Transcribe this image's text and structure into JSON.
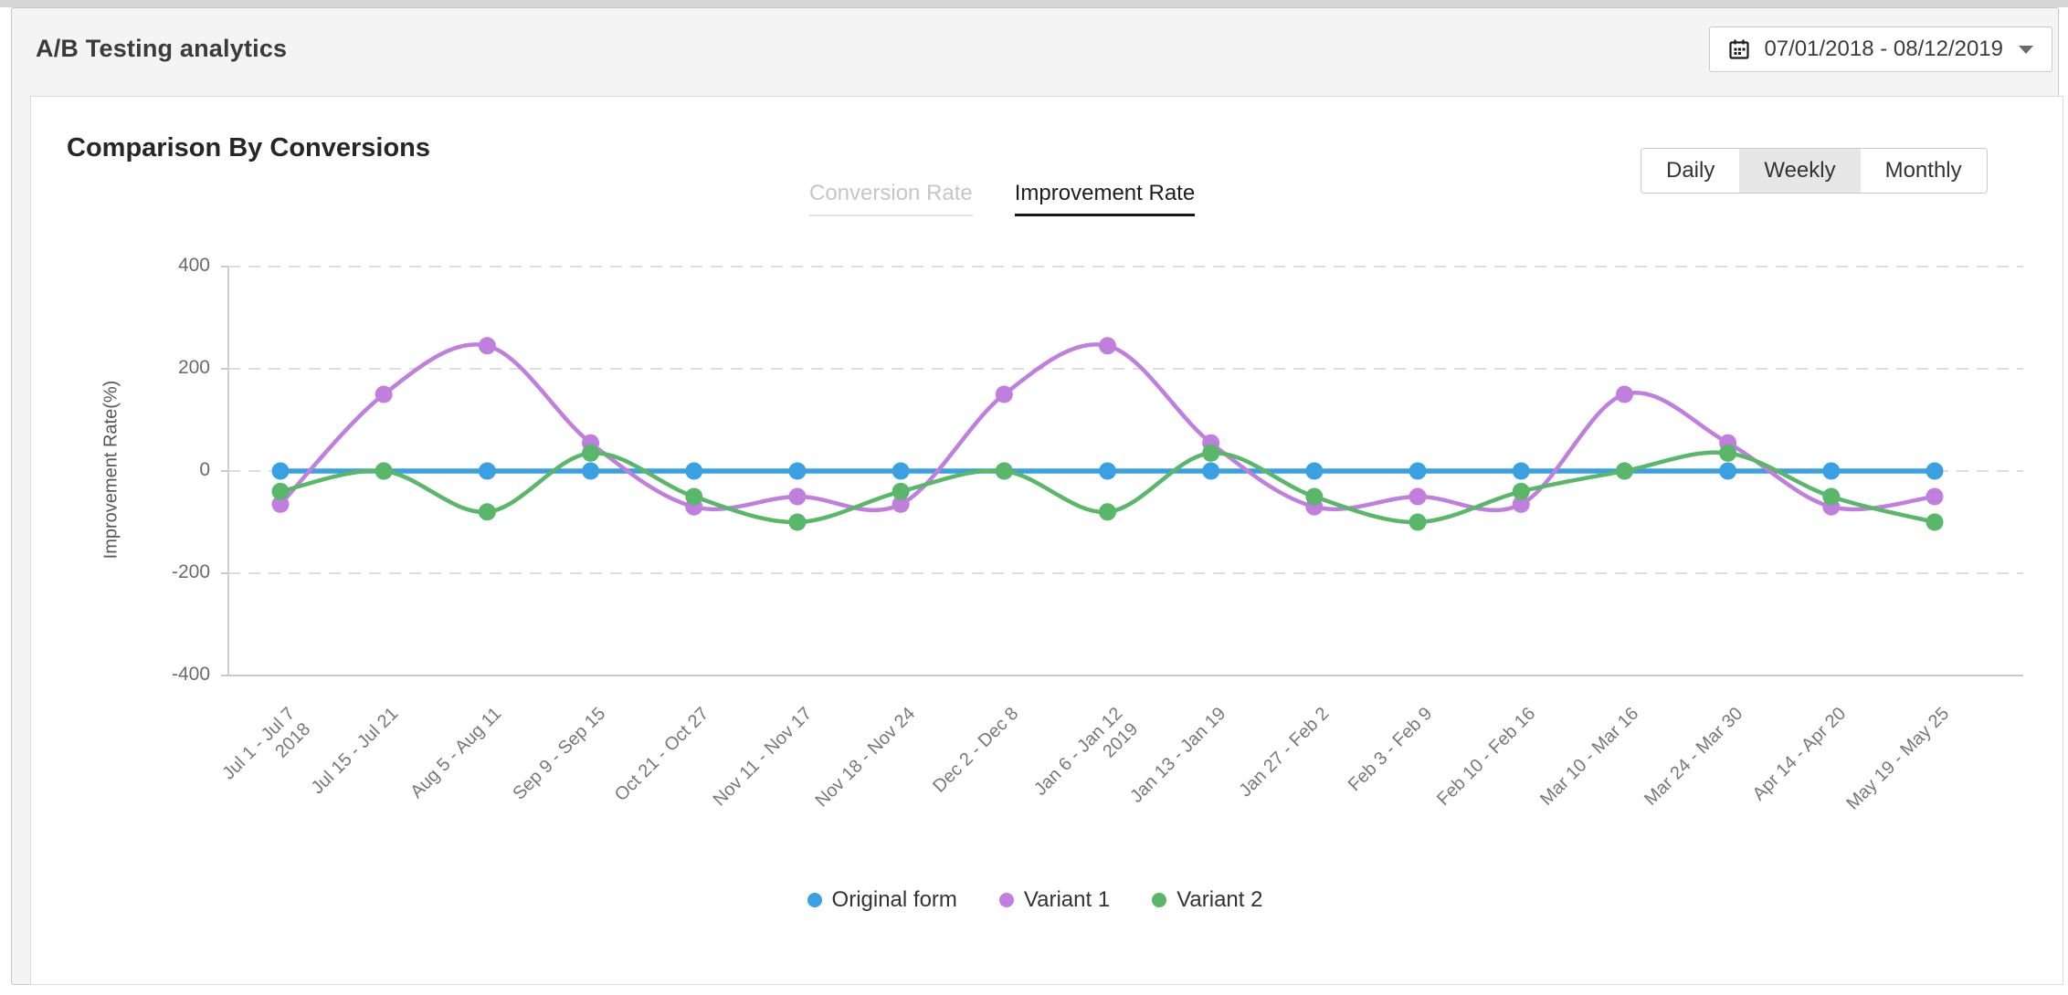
{
  "header": {
    "title": "A/B Testing analytics",
    "date_range": "07/01/2018 - 08/12/2019"
  },
  "toolbar": {
    "segments": [
      "Daily",
      "Weekly",
      "Monthly"
    ],
    "selected": "Weekly"
  },
  "panel": {
    "title": "Comparison By Conversions",
    "tabs": [
      {
        "label": "Conversion Rate"
      },
      {
        "label": "Improvement Rate"
      }
    ],
    "active_tab": "Improvement Rate"
  },
  "chart_data": {
    "type": "line",
    "title": "Comparison By Conversions",
    "xlabel": "",
    "ylabel": "Improvement Rate(%)",
    "ylim": [
      -400,
      400
    ],
    "yticks": [
      400,
      200,
      0,
      -200,
      -400
    ],
    "grid": "dashed-horizontal",
    "legend_position": "bottom",
    "categories": [
      "Jul 1 - Jul 7",
      "Jul 15 - Jul 21",
      "Aug 5 - Aug 11",
      "Sep 9 - Sep 15",
      "Oct 21 - Oct 27",
      "Nov 11 - Nov 17",
      "Nov 18 - Nov 24",
      "Dec 2 - Dec 8",
      "Jan 6 - Jan 12",
      "Jan 13 - Jan 19",
      "Jan 27 - Feb 2",
      "Feb 3 - Feb 9",
      "Feb 10 - Feb 16",
      "Mar 10 - Mar 16",
      "Mar 24 - Mar 30",
      "Apr 14 - Apr 20",
      "May 19 - May 25"
    ],
    "year_markers": [
      {
        "index": 0,
        "year": "2018"
      },
      {
        "index": 8,
        "year": "2019"
      }
    ],
    "series": [
      {
        "name": "Original form",
        "color": "#39a1e3",
        "values": [
          0,
          0,
          0,
          0,
          0,
          0,
          0,
          0,
          0,
          0,
          0,
          0,
          0,
          0,
          0,
          0,
          0
        ]
      },
      {
        "name": "Variant 1",
        "color": "#c07ede",
        "values": [
          -65,
          150,
          245,
          55,
          -70,
          -50,
          -65,
          150,
          245,
          55,
          -70,
          -50,
          -65,
          150,
          55,
          -70,
          -50
        ]
      },
      {
        "name": "Variant 2",
        "color": "#58b768",
        "values": [
          -40,
          0,
          -80,
          35,
          -50,
          -100,
          -40,
          0,
          -80,
          35,
          -50,
          -100,
          -40,
          0,
          35,
          -50,
          -100
        ]
      }
    ]
  }
}
